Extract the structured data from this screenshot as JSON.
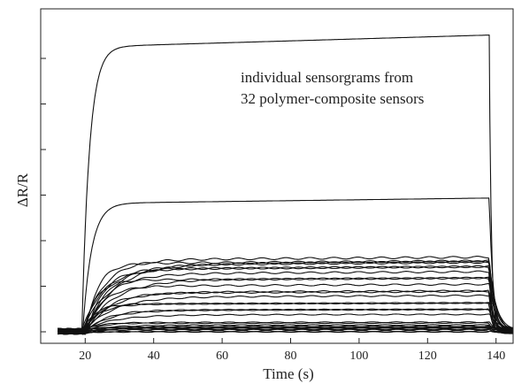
{
  "chart_data": {
    "type": "line",
    "title": "",
    "xlabel": "Time (s)",
    "ylabel": "ΔR/R",
    "xlim": [
      7,
      150
    ],
    "ylim": [
      -0.2,
      6.3
    ],
    "xticks": [
      20,
      40,
      60,
      80,
      100,
      120,
      140
    ],
    "xtick_labels": [
      "20",
      "40",
      "60",
      "80",
      "100",
      "120",
      "140"
    ],
    "yticks": [
      0,
      1,
      2,
      3,
      4,
      5,
      6
    ],
    "ytick_labels": [
      "",
      "",
      "",
      "",
      "",
      "",
      ""
    ],
    "grid": false,
    "annotation": [
      "individual sensorgrams from",
      "32 polymer-composite sensors"
    ],
    "exposure_start_s": 19,
    "exposure_end_s": 138,
    "series_count": 32,
    "plateau_levels": [
      6.3,
      2.82,
      1.53,
      1.5,
      1.47,
      1.44,
      1.4,
      1.35,
      1.2,
      1.15,
      1.1,
      1.05,
      0.85,
      0.82,
      0.8,
      0.6,
      0.55,
      0.5,
      0.45,
      0.3,
      0.2,
      0.17,
      0.14,
      0.12,
      0.1,
      0.08,
      0.06,
      0.05,
      0.04,
      0.03,
      0.02,
      0.01
    ],
    "color": "#111111"
  }
}
